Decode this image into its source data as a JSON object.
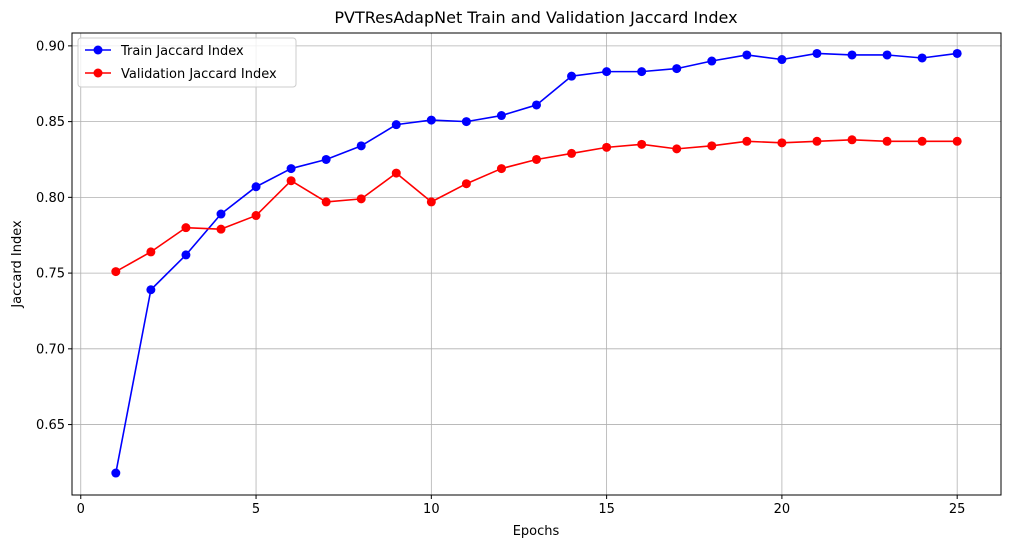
{
  "chart_data": {
    "type": "line",
    "title": "PVTResAdapNet Train and Validation Jaccard Index",
    "xlabel": "Epochs",
    "ylabel": "Jaccard Index",
    "xlim": [
      -0.25,
      26.25
    ],
    "ylim": [
      0.6035,
      0.9085
    ],
    "xticks": [
      0,
      5,
      10,
      15,
      20,
      25
    ],
    "yticks": [
      0.65,
      0.7,
      0.75,
      0.8,
      0.85,
      0.9
    ],
    "ytick_labels": [
      "0.65",
      "0.70",
      "0.75",
      "0.80",
      "0.85",
      "0.90"
    ],
    "grid": true,
    "legend_position": "top-left",
    "x": [
      1,
      2,
      3,
      4,
      5,
      6,
      7,
      8,
      9,
      10,
      11,
      12,
      13,
      14,
      15,
      16,
      17,
      18,
      19,
      20,
      21,
      22,
      23,
      24,
      25
    ],
    "series": [
      {
        "name": "Train Jaccard Index",
        "color": "#0000ff",
        "marker": "circle",
        "values": [
          0.618,
          0.739,
          0.762,
          0.789,
          0.807,
          0.819,
          0.825,
          0.834,
          0.848,
          0.851,
          0.85,
          0.854,
          0.861,
          0.88,
          0.883,
          0.883,
          0.885,
          0.89,
          0.894,
          0.891,
          0.895,
          0.894,
          0.894,
          0.892,
          0.895
        ]
      },
      {
        "name": "Validation Jaccard Index",
        "color": "#ff0000",
        "marker": "circle",
        "values": [
          0.751,
          0.764,
          0.78,
          0.779,
          0.788,
          0.811,
          0.797,
          0.799,
          0.816,
          0.797,
          0.809,
          0.819,
          0.825,
          0.829,
          0.833,
          0.835,
          0.832,
          0.834,
          0.837,
          0.836,
          0.837,
          0.838,
          0.837,
          0.837,
          0.837
        ]
      }
    ]
  }
}
